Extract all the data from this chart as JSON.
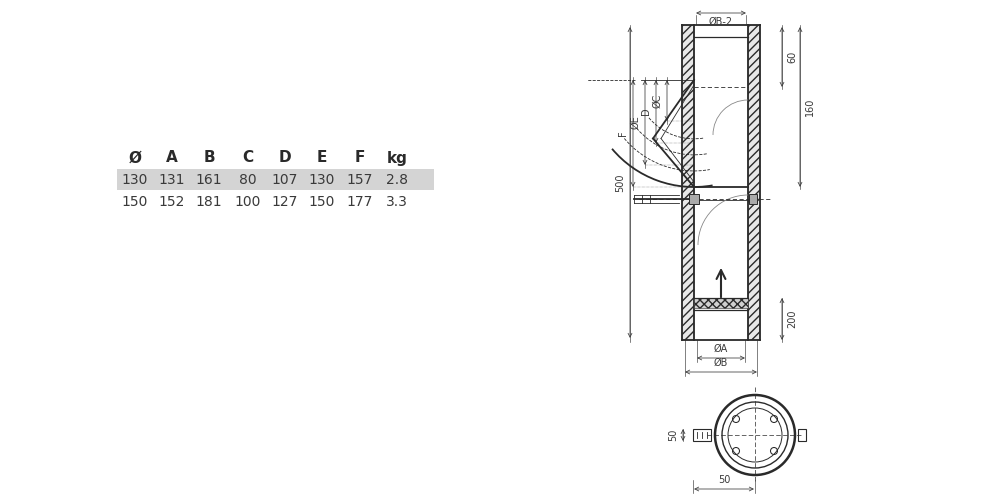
{
  "bg_color": "#ffffff",
  "table_headers": [
    "Ø",
    "A",
    "B",
    "C",
    "D",
    "E",
    "F",
    "kg"
  ],
  "table_row1": [
    "130",
    "131",
    "161",
    "80",
    "107",
    "130",
    "157",
    "2.8"
  ],
  "table_row2": [
    "150",
    "152",
    "181",
    "100",
    "127",
    "150",
    "177",
    "3.3"
  ],
  "row1_bg": "#d4d4d4",
  "line_color": "#2a2a2a",
  "dim_color": "#3a3a3a",
  "hatch_color": "#555555"
}
